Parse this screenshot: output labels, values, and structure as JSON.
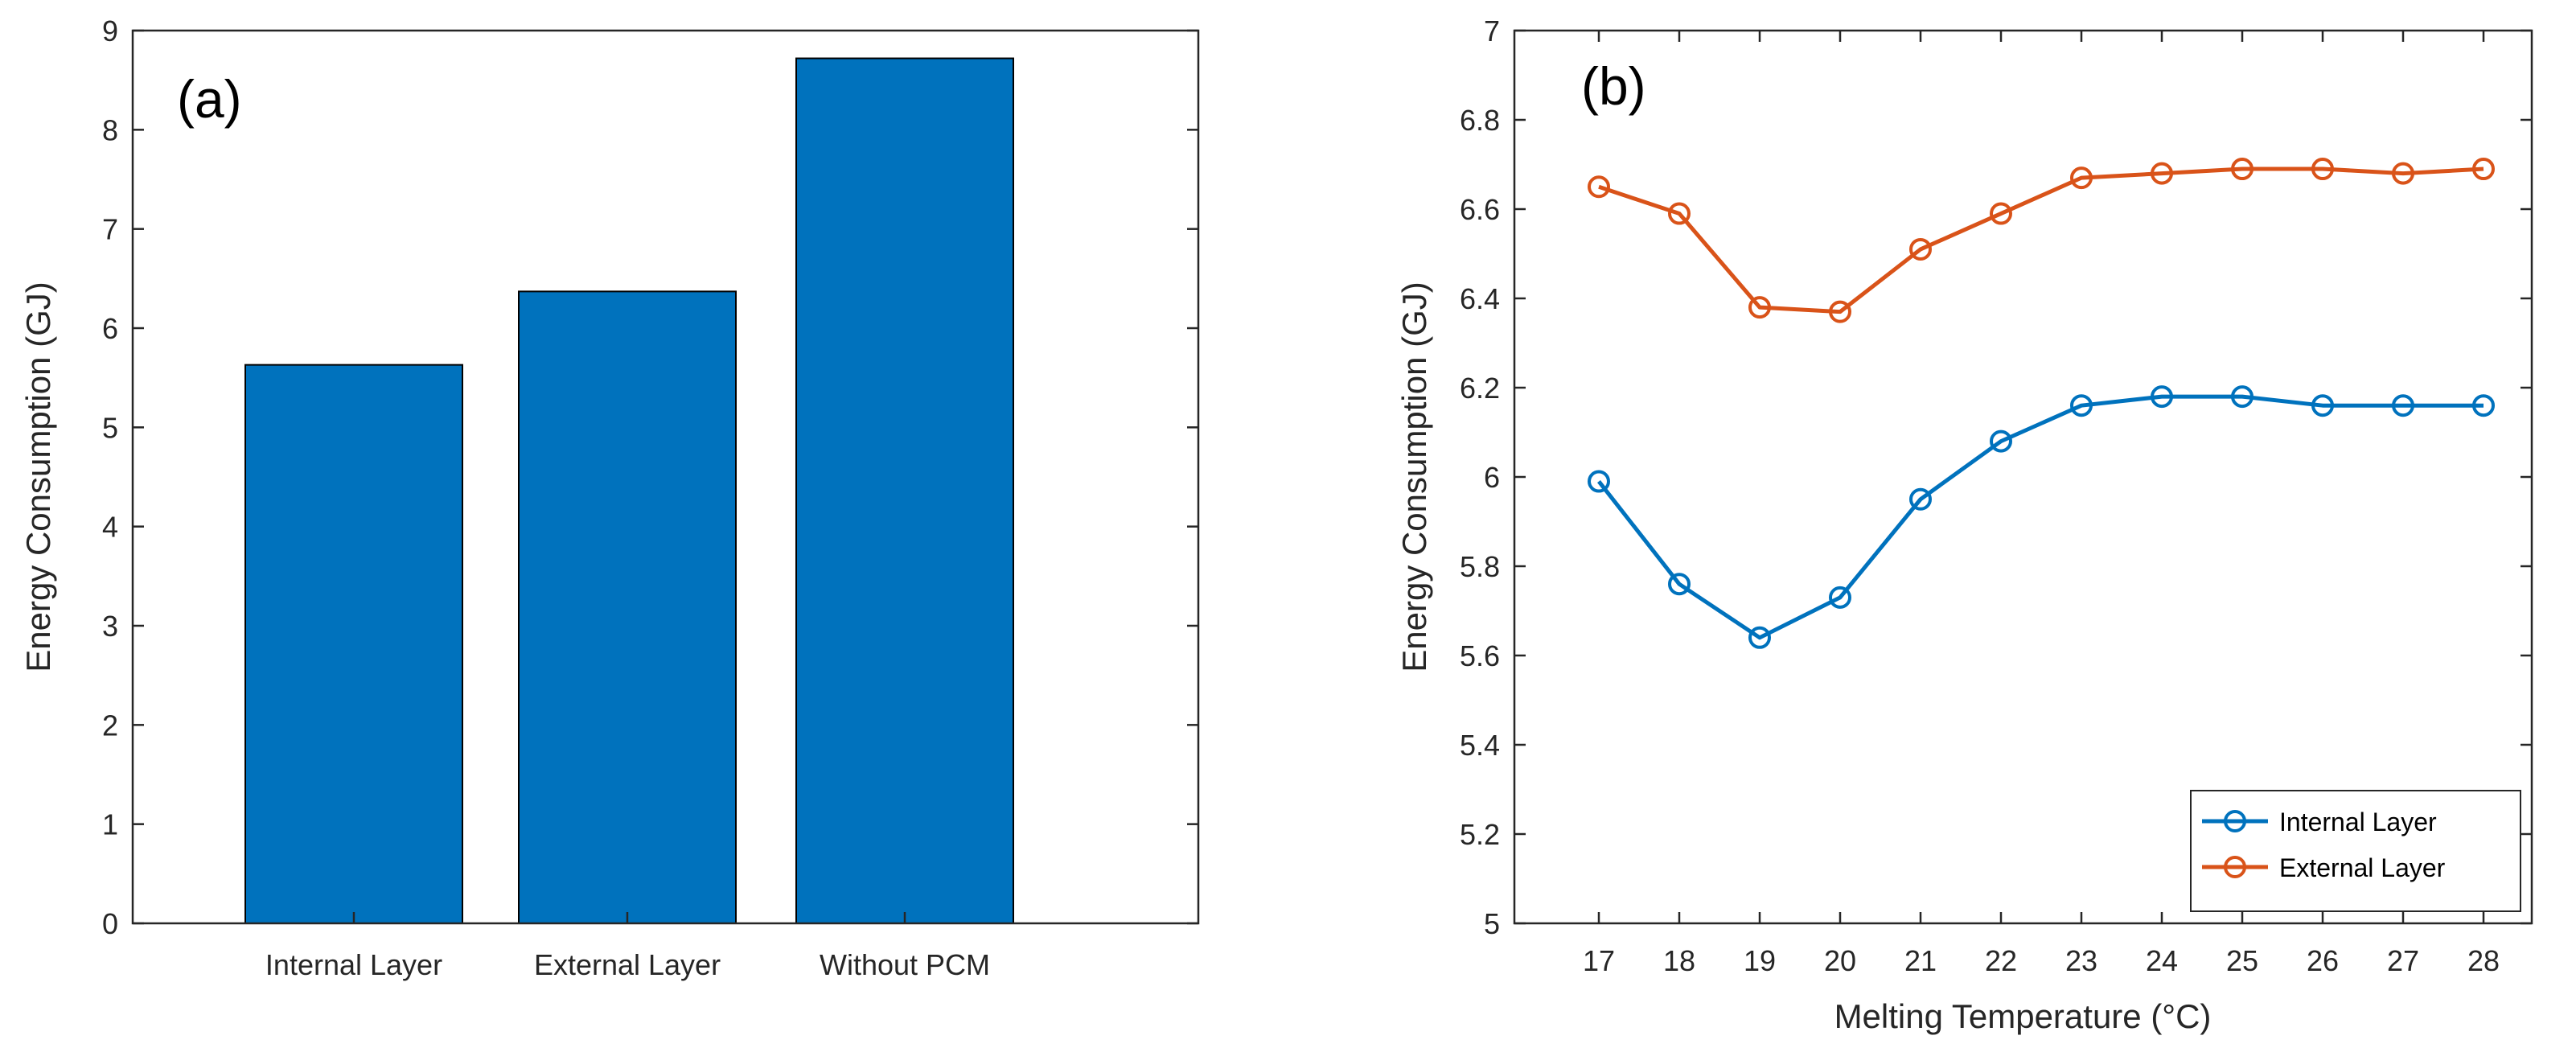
{
  "colors": {
    "internal": "#0072BD",
    "external": "#D95319",
    "bar": "#0072BD",
    "axis": "#262626"
  },
  "chart_data": [
    {
      "type": "bar",
      "panel_label": "(a)",
      "categories": [
        "Internal Layer",
        "External Layer",
        "Without PCM"
      ],
      "values": [
        5.63,
        6.37,
        8.72
      ],
      "ylabel": "Energy Consumption (GJ)",
      "xlabel": "",
      "ylim": [
        0,
        9
      ],
      "yticks": [
        "0",
        "1",
        "2",
        "3",
        "4",
        "5",
        "6",
        "7",
        "8",
        "9"
      ]
    },
    {
      "type": "line",
      "panel_label": "(b)",
      "x": [
        "17",
        "18",
        "19",
        "20",
        "21",
        "22",
        "23",
        "24",
        "25",
        "26",
        "27",
        "28"
      ],
      "series": [
        {
          "name": "Internal Layer",
          "values": [
            5.99,
            5.76,
            5.64,
            5.73,
            5.95,
            6.08,
            6.16,
            6.18,
            6.18,
            6.16,
            6.16,
            6.16
          ]
        },
        {
          "name": "External Layer",
          "values": [
            6.65,
            6.59,
            6.38,
            6.37,
            6.51,
            6.59,
            6.67,
            6.68,
            6.69,
            6.69,
            6.68,
            6.69
          ]
        }
      ],
      "xlabel": "Melting Temperature (°C)",
      "ylabel": "Energy Consumption (GJ)",
      "ylim": [
        5,
        7
      ],
      "yticks": [
        "5",
        "5.2",
        "5.4",
        "5.6",
        "5.8",
        "6",
        "6.2",
        "6.4",
        "6.6",
        "6.8",
        "7"
      ],
      "legend": "bottom-right"
    }
  ]
}
